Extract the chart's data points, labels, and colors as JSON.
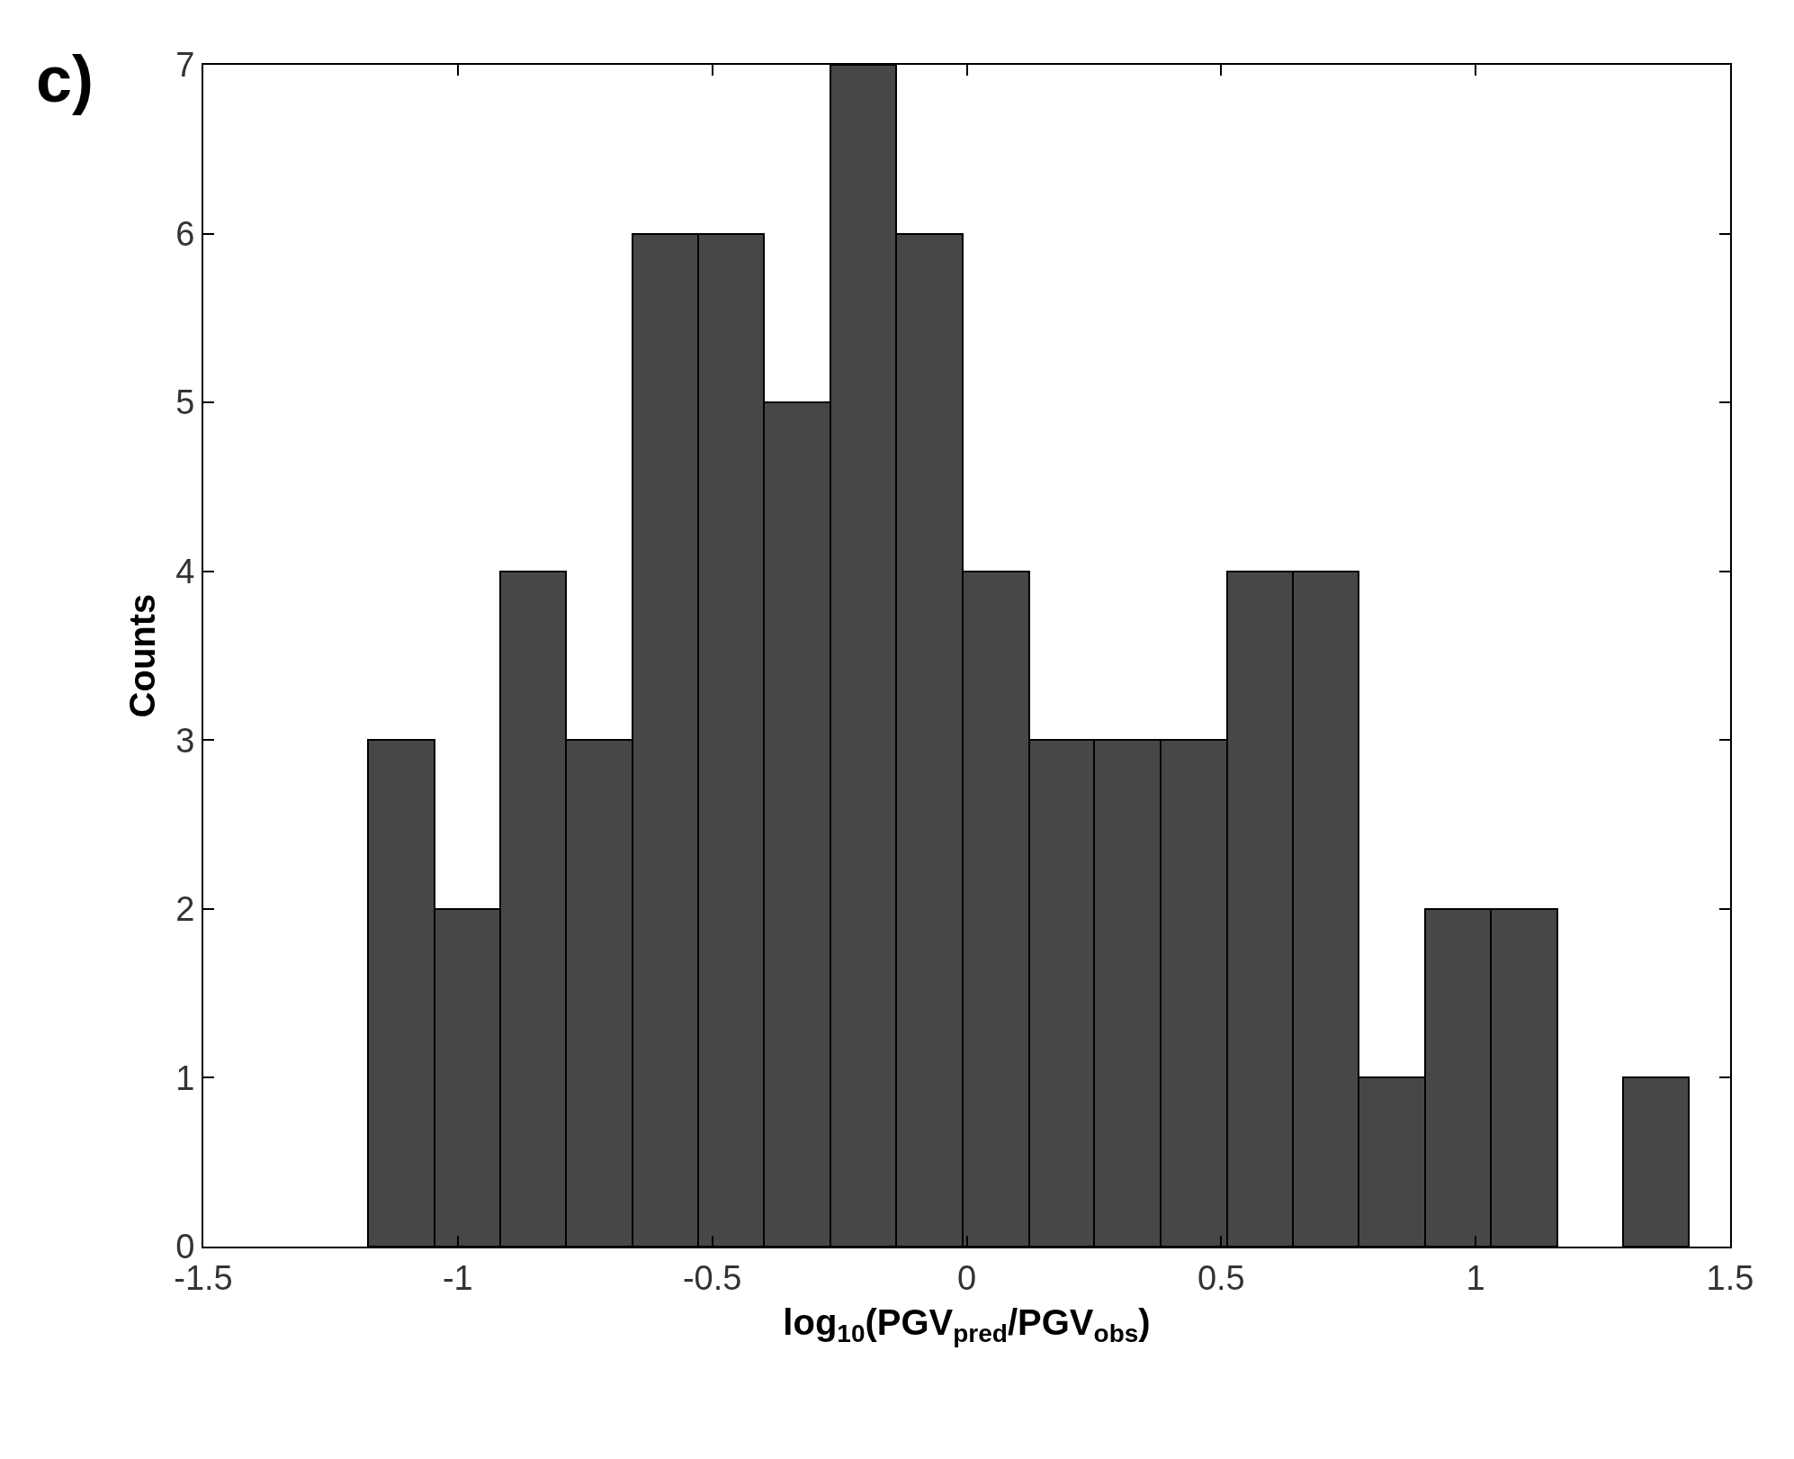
{
  "chart_data": {
    "type": "histogram",
    "xlabel": "log$_{10}$(PGV$_{pred}$/PGV$_{obs}$)",
    "ylabel": "Counts",
    "annotations": [
      "c)"
    ],
    "bins": [
      -1.176,
      -1.046,
      -0.917,
      -0.787,
      -0.657,
      -0.527,
      -0.398,
      -0.268,
      -0.138,
      -0.008,
      0.122,
      0.251,
      0.381,
      0.511,
      0.641,
      0.77,
      0.9,
      1.03,
      1.16,
      1.289,
      1.419
    ],
    "values": [
      3,
      2,
      4,
      3,
      6,
      6,
      5,
      7,
      6,
      4,
      3,
      3,
      3,
      4,
      4,
      1,
      2,
      2,
      0,
      1
    ],
    "color": "#474747",
    "xlim": [
      -1.5,
      1.5
    ],
    "xticks": [
      -1.5,
      -1,
      -0.5,
      0,
      0.5,
      1,
      1.5
    ],
    "ylim": [
      0,
      7
    ],
    "yticks": [
      0,
      1,
      2,
      3,
      4,
      5,
      6,
      7
    ]
  }
}
